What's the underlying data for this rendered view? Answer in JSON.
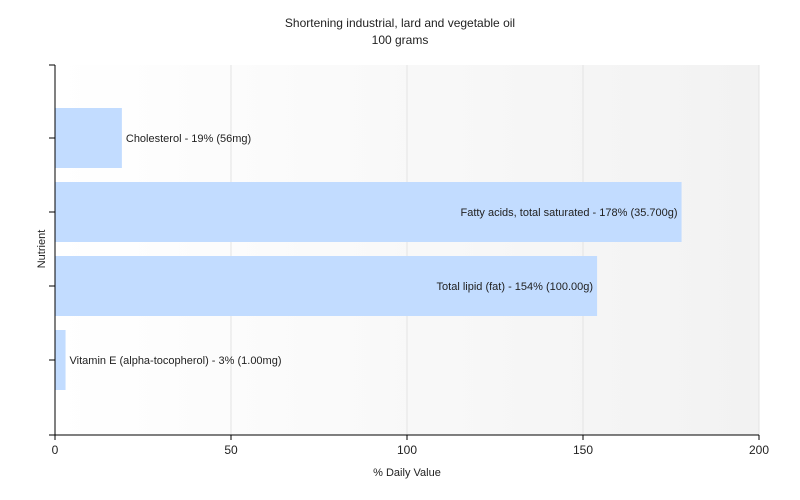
{
  "chart_data": {
    "type": "bar",
    "orientation": "horizontal",
    "title": "Shortening industrial, lard and vegetable oil",
    "subtitle": "100 grams",
    "xlabel": "% Daily Value",
    "ylabel": "Nutrient",
    "xlim": [
      0,
      200
    ],
    "xticks": [
      "0",
      "50",
      "100",
      "150",
      "200"
    ],
    "grid": true,
    "categories": [
      "Cholesterol",
      "Fatty acids, total saturated",
      "Total lipid (fat)",
      "Vitamin E (alpha-tocopherol)"
    ],
    "values": [
      19,
      178,
      154,
      3
    ],
    "labels": [
      "Cholesterol - 19% (56mg)",
      "Fatty acids, total saturated - 178% (35.700g)",
      "Total lipid (fat) - 154% (100.00g)",
      "Vitamin E (alpha-tocopherol) - 3% (1.00mg)"
    ],
    "colors": {
      "bar": "#c2dcff",
      "grid": "#e3e3e3",
      "axis": "#000000",
      "plot_bg_start": "#ffffff",
      "plot_bg_end": "#f2f2f2"
    }
  }
}
